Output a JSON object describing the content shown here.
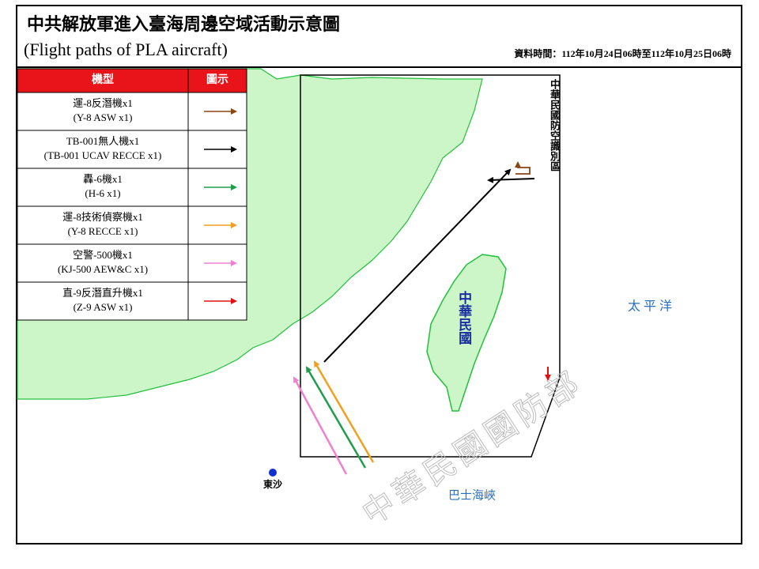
{
  "header": {
    "title": "中共解放軍進入臺海周邊空域活動示意圖",
    "subtitle": "(Flight paths of PLA aircraft)",
    "date": "資料時間：112年10月24日06時至112年10月25日06時"
  },
  "legend": {
    "headers": [
      "機型",
      "圖示"
    ],
    "rows": [
      {
        "name": "運-8反潛機x1",
        "name_en": "(Y-8 ASW x1)",
        "color": "#8b4513"
      },
      {
        "name": "TB-001無人機x1",
        "name_en": "(TB-001 UCAV RECCE x1)",
        "color": "#000000"
      },
      {
        "name": "轟-6機x1",
        "name_en": "(H-6 x1)",
        "color": "#1e9e4a"
      },
      {
        "name": "運-8技術偵察機x1",
        "name_en": "(Y-8 RECCE x1)",
        "color": "#f0a020"
      },
      {
        "name": "空警-500機x1",
        "name_en": "(KJ-500 AEW&C x1)",
        "color": "#f080d0"
      },
      {
        "name": "直-9反潛直升機x1",
        "name_en": "(Z-9 ASW x1)",
        "color": "#e01010"
      }
    ]
  },
  "map": {
    "adiz": "中華民國防空識別區",
    "taiwan": "中華民國",
    "pacific": "太 平 洋",
    "dongsha": "東沙",
    "bashi": "巴士海峽",
    "watermark": "中華民國國防部"
  }
}
